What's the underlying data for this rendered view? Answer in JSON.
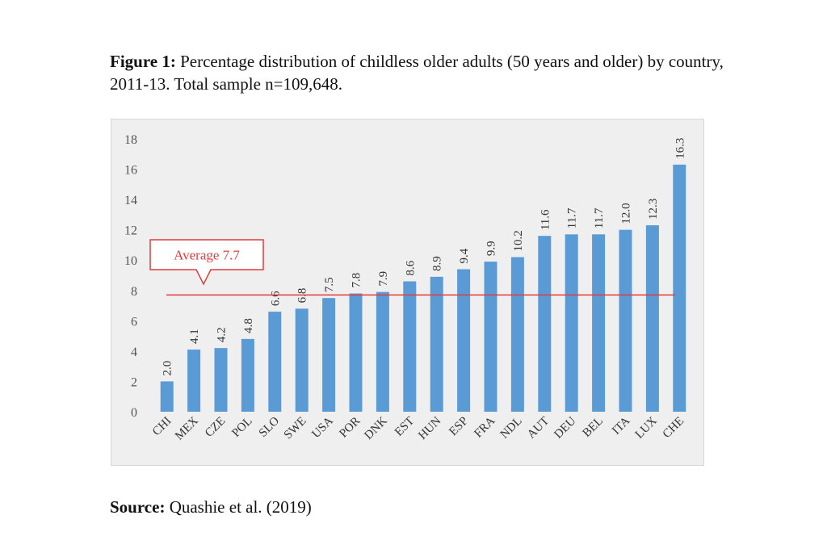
{
  "figure": {
    "caption_label": "Figure 1:",
    "caption_text": " Percentage distribution of childless older adults (50 years and older) by country, 2011-13. Total sample n=109,648.",
    "source_label": "Source:",
    "source_text": " Quashie et al. (2019)"
  },
  "chart_data": {
    "type": "bar",
    "title": "",
    "xlabel": "",
    "ylabel": "",
    "ylim": [
      0,
      18
    ],
    "yticks": [
      0,
      2,
      4,
      6,
      8,
      10,
      12,
      14,
      16,
      18
    ],
    "grid": false,
    "categories": [
      "CHI",
      "MEX",
      "CZE",
      "POL",
      "SLO",
      "SWE",
      "USA",
      "POR",
      "DNK",
      "EST",
      "HUN",
      "ESP",
      "FRA",
      "NDL",
      "AUT",
      "DEU",
      "BEL",
      "ITA",
      "LUX",
      "CHE"
    ],
    "values": [
      2.0,
      4.1,
      4.2,
      4.8,
      6.6,
      6.8,
      7.5,
      7.8,
      7.9,
      8.6,
      8.9,
      9.4,
      9.9,
      10.2,
      11.6,
      11.7,
      11.7,
      12.0,
      12.3,
      16.3
    ],
    "data_labels": [
      "2.0",
      "4.1",
      "4.2",
      "4.8",
      "6.6",
      "6.8",
      "7.5",
      "7.8",
      "7.9",
      "8.6",
      "8.9",
      "9.4",
      "9.9",
      "10.2",
      "11.6",
      "11.7",
      "11.7",
      "12.0",
      "12.3",
      "16.3"
    ],
    "average": {
      "value": 7.7,
      "label": "Average 7.7"
    },
    "colors": {
      "bar": "#5b9bd5",
      "average_line": "#e03c3c",
      "plot_bg": "#efefef",
      "text": "#555555"
    }
  }
}
